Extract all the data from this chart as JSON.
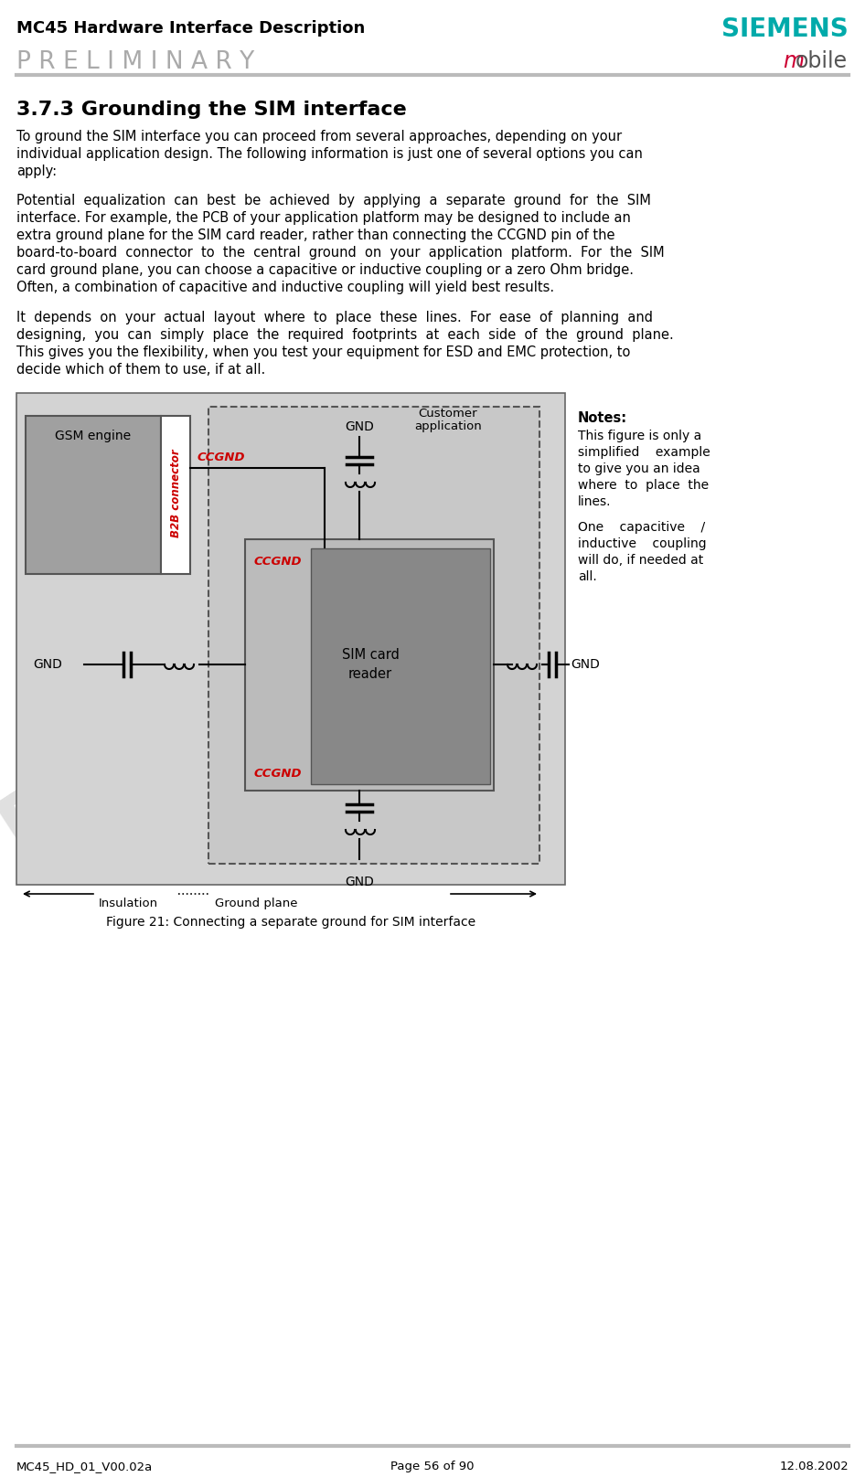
{
  "header_title": "MC45 Hardware Interface Description",
  "header_subtitle": "PRELIMINARY",
  "siemens_text": "SIEMENS",
  "mobile_text": "mobile",
  "siemens_color": "#00AAAA",
  "mobile_m_color": "#CC0033",
  "section_title": "3.7.3 Grounding the SIM interface",
  "para1_lines": [
    "To ground the SIM interface you can proceed from several approaches, depending on your",
    "individual application design. The following information is just one of several options you can",
    "apply:"
  ],
  "para2_lines": [
    "Potential  equalization  can  best  be  achieved  by  applying  a  separate  ground  for  the  SIM",
    "interface. For example, the PCB of your application platform may be designed to include an",
    "extra ground plane for the SIM card reader, rather than connecting the CCGND pin of the",
    "board-to-board  connector  to  the  central  ground  on  your  application  platform.  For  the  SIM",
    "card ground plane, you can choose a capacitive or inductive coupling or a zero Ohm bridge.",
    "Often, a combination of capacitive and inductive coupling will yield best results."
  ],
  "para3_lines": [
    "It  depends  on  your  actual  layout  where  to  place  these  lines.  For  ease  of  planning  and",
    "designing,  you  can  simply  place  the  required  footprints  at  each  side  of  the  ground  plane.",
    "This gives you the flexibility, when you test your equipment for ESD and EMC protection, to",
    "decide which of them to use, if at all."
  ],
  "fig_caption": "Figure 21: Connecting a separate ground for SIM interface",
  "notes_title": "Notes:",
  "note1_lines": [
    "This figure is only a",
    "simplified    example",
    "to give you an idea",
    "where  to  place  the",
    "lines."
  ],
  "note2_lines": [
    "One    capacitive    /",
    "inductive    coupling",
    "will do, if needed at",
    "all."
  ],
  "footer_left": "MC45_HD_01_V00.02a",
  "footer_center": "Page 56 of 90",
  "footer_right": "12.08.2002",
  "bg_color": "#FFFFFF",
  "header_line_color": "#BBBBBB",
  "diagram_bg": "#D3D3D3",
  "ccgnd_color": "#CC0000",
  "watermark_color": "#CCCCCC"
}
